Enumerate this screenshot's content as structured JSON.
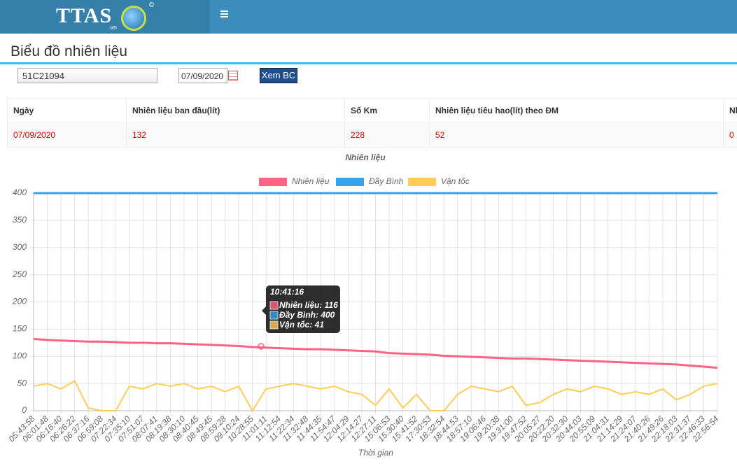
{
  "header": {
    "logo": "TTAS",
    "logo_suffix": ".vn",
    "logo_mark": "©"
  },
  "page_title": "Biểu đồ nhiên liệu",
  "form": {
    "vehicle": "51C21094",
    "date": "07/09/2020",
    "button": "Xem BC"
  },
  "table": {
    "columns": [
      "Ngày",
      "Nhiên liệu ban đầu(lít)",
      "Số Km",
      "Nhiên liệu tiêu hao(lít) theo ĐM",
      "Nh"
    ],
    "rows": [
      [
        "07/09/2020",
        132,
        228,
        52,
        0
      ]
    ]
  },
  "chart_data": {
    "type": "line",
    "title": "Nhiên liệu",
    "x_label": "Thời gian",
    "categories": [
      "05:43:58",
      "06:01:48",
      "06:16:40",
      "06:26:22",
      "06:37:16",
      "06:59:08",
      "07:22:34",
      "07:35:10",
      "07:51:07",
      "08:07:41",
      "08:19:38",
      "08:30:10",
      "08:40:45",
      "08:49:45",
      "08:59:28",
      "09:10:24",
      "10:28:55",
      "11:01:11",
      "11:12:54",
      "11:22:34",
      "11:32:48",
      "11:44:35",
      "11:54:47",
      "12:04:29",
      "12:14:27",
      "12:27:11",
      "15:06:53",
      "15:30:40",
      "15:41:52",
      "17:30:53",
      "18:32:54",
      "18:44:53",
      "18:57:10",
      "19:06:46",
      "19:20:38",
      "19:31:00",
      "19:47:52",
      "20:05:27",
      "20:22:20",
      "20:32:30",
      "20:44:03",
      "20:55:09",
      "21:04:31",
      "21:14:29",
      "21:24:07",
      "21:40:26",
      "21:49:26",
      "22:18:03",
      "22:31:37",
      "22:46:33",
      "22:56:54"
    ],
    "series": [
      {
        "name": "Nhiên liệu",
        "color": "#ff6384",
        "values": [
          132,
          130,
          129,
          128,
          127,
          127,
          126,
          125,
          125,
          124,
          124,
          123,
          122,
          121,
          120,
          119,
          117,
          116,
          115,
          114,
          113,
          113,
          112,
          111,
          110,
          109,
          106,
          105,
          104,
          103,
          101,
          100,
          99,
          98,
          97,
          96,
          96,
          95,
          94,
          93,
          92,
          91,
          90,
          89,
          88,
          87,
          86,
          85,
          83,
          81,
          79
        ]
      },
      {
        "name": "Đầy Bình",
        "color": "#36a2eb",
        "values": [
          400,
          400,
          400,
          400,
          400,
          400,
          400,
          400,
          400,
          400,
          400,
          400,
          400,
          400,
          400,
          400,
          400,
          400,
          400,
          400,
          400,
          400,
          400,
          400,
          400,
          400,
          400,
          400,
          400,
          400,
          400,
          400,
          400,
          400,
          400,
          400,
          400,
          400,
          400,
          400,
          400,
          400,
          400,
          400,
          400,
          400,
          400,
          400,
          400,
          400,
          400
        ]
      },
      {
        "name": "Vận tốc",
        "color": "#ffcd56",
        "values": [
          45,
          50,
          40,
          55,
          5,
          0,
          0,
          45,
          40,
          50,
          45,
          50,
          40,
          45,
          35,
          45,
          0,
          40,
          45,
          50,
          45,
          40,
          45,
          35,
          30,
          10,
          40,
          5,
          30,
          0,
          0,
          30,
          45,
          40,
          35,
          45,
          10,
          15,
          30,
          40,
          35,
          45,
          40,
          30,
          35,
          30,
          40,
          20,
          30,
          45,
          50
        ]
      }
    ],
    "ylim": [
      0,
      400
    ],
    "yticks": [
      0,
      50,
      100,
      150,
      200,
      250,
      300,
      350,
      400
    ],
    "grid": true,
    "legend": "top",
    "tooltip": {
      "title": "10:41:16",
      "items": [
        "Nhiên liệu: 116",
        "Đầy Bình: 400",
        "Vận tốc: 41"
      ]
    }
  }
}
